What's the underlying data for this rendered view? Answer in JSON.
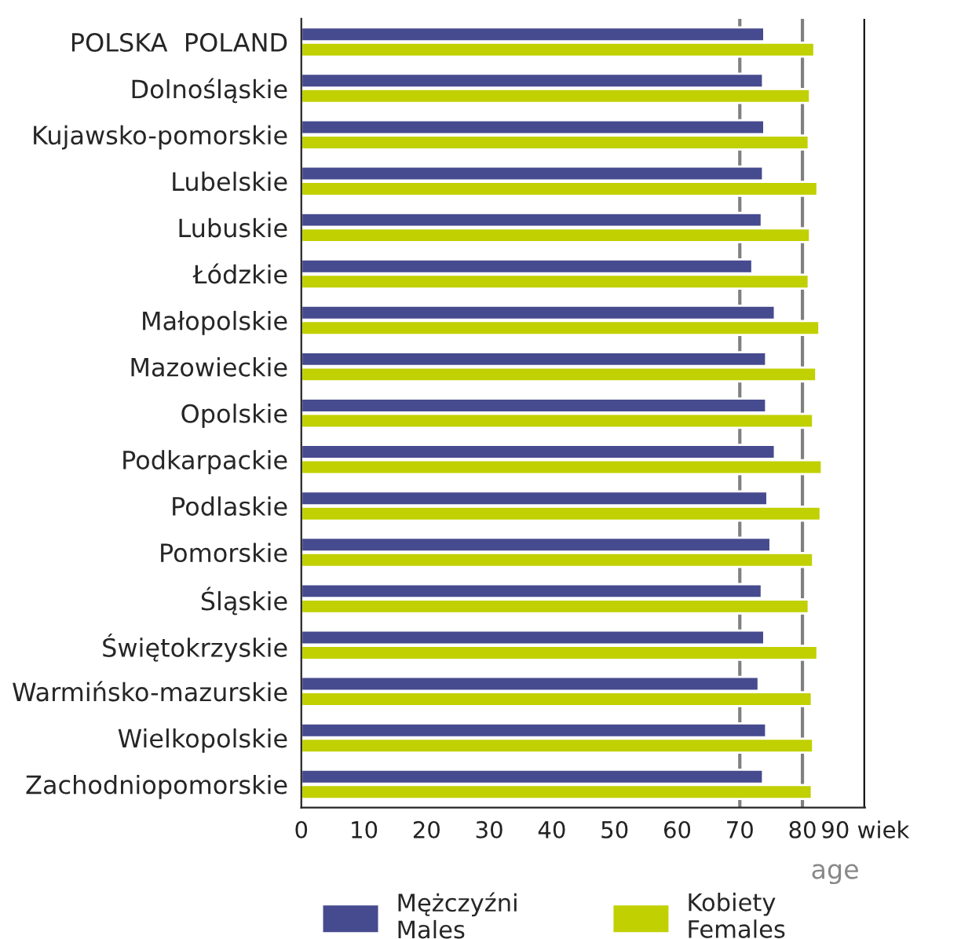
{
  "chart_data": {
    "type": "bar",
    "orientation": "horizontal",
    "categories": [
      "POLSKA  POLAND",
      "Dolnośląskie",
      "Kujawsko-pomorskie",
      "Lubelskie",
      "Lubuskie",
      "Łódzkie",
      "Małopolskie",
      "Mazowieckie",
      "Opolskie",
      "Podkarpackie",
      "Podlaskie",
      "Pomorskie",
      "Śląskie",
      "Świętokrzyskie",
      "Warmińsko-mazurskie",
      "Wielkopolskie",
      "Zachodniopomorskie"
    ],
    "series": [
      {
        "name": "Mężczyźni\nMales",
        "color": "#464a8e",
        "values": [
          73.9,
          73.7,
          73.9,
          73.7,
          73.5,
          72.0,
          75.6,
          74.2,
          74.2,
          75.6,
          74.4,
          74.9,
          73.5,
          73.9,
          73.0,
          74.2,
          73.7
        ]
      },
      {
        "name": "Kobiety\nFemales",
        "color": "#c0d000",
        "values": [
          81.9,
          81.2,
          81.0,
          82.4,
          81.2,
          81.0,
          82.7,
          82.2,
          81.7,
          83.1,
          82.9,
          81.7,
          81.0,
          82.4,
          81.5,
          81.7,
          81.5
        ]
      }
    ],
    "xlim": [
      0,
      90
    ],
    "xticks": [
      0,
      10,
      20,
      30,
      40,
      50,
      60,
      70,
      80,
      {
        "value": 90,
        "label": "90 wiek"
      }
    ],
    "xlabel": "age",
    "ref_lines": [
      {
        "axis": "x",
        "value": 70,
        "color": "#808080"
      },
      {
        "axis": "x",
        "value": 80,
        "color": "#808080"
      },
      {
        "axis": "x",
        "value": 90,
        "color": "#000000"
      }
    ],
    "legend": "bottom"
  }
}
